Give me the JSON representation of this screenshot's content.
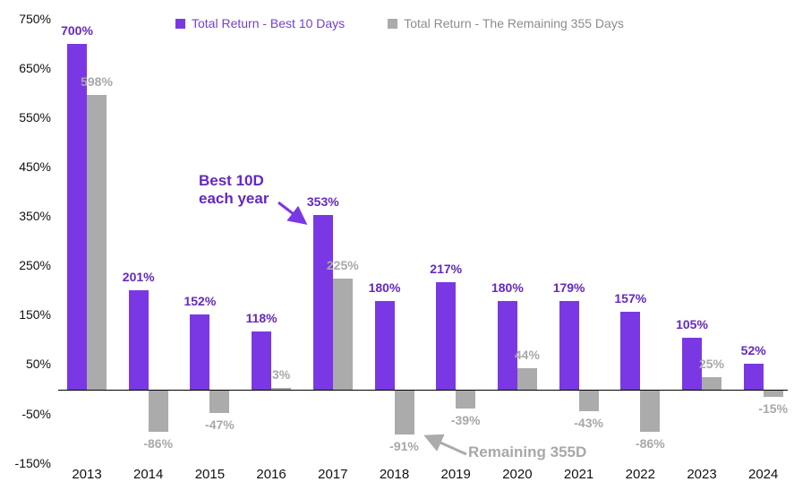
{
  "chart_data": {
    "type": "bar",
    "title": "",
    "categories": [
      "2013",
      "2014",
      "2015",
      "2016",
      "2017",
      "2018",
      "2019",
      "2020",
      "2021",
      "2022",
      "2023",
      "2024"
    ],
    "series": [
      {
        "name": "Total Return - Best 10 Days",
        "color": "#7a38e4",
        "label_color": "#6429c0",
        "legend_text_color": "#7340d2",
        "values": [
          700,
          201,
          152,
          118,
          353,
          180,
          217,
          180,
          179,
          157,
          105,
          52
        ],
        "labels": [
          "700%",
          "201%",
          "152%",
          "118%",
          "353%",
          "180%",
          "217%",
          "180%",
          "179%",
          "157%",
          "105%",
          "52%"
        ]
      },
      {
        "name": "Total Return - The Remaining 355 Days",
        "color": "#ababab",
        "label_color": "#a8a8a8",
        "legend_text_color": "#8c8c8c",
        "values": [
          598,
          -86,
          -47,
          3,
          225,
          -91,
          -39,
          44,
          -43,
          -86,
          25,
          -15
        ],
        "labels": [
          "598%",
          "-86%",
          "-47%",
          "3%",
          "225%",
          "-91%",
          "-39%",
          "44%",
          "-43%",
          "-86%",
          "25%",
          "-15%"
        ]
      }
    ],
    "y_axis": {
      "min": -150,
      "max": 750,
      "ticks": [
        750,
        650,
        550,
        450,
        350,
        250,
        150,
        50,
        -50,
        -150
      ],
      "tick_labels": [
        "750%",
        "650%",
        "550%",
        "450%",
        "350%",
        "250%",
        "150%",
        "50%",
        "-50%",
        "-150%"
      ]
    },
    "grid": false,
    "legend_position": "top",
    "annotations": [
      {
        "id": "best-10d",
        "line1": "Best 10D",
        "line2": "each year",
        "color": "#6429c0",
        "arrow_color": "#7a38e4",
        "points_to": "2017 Best 10 Days bar"
      },
      {
        "id": "remaining-355d",
        "line1": "Remaining 355D",
        "line2": "",
        "color": "#a8a8a8",
        "arrow_color": "#ababab",
        "points_to": "2018 Remaining 355 Days bar"
      }
    ]
  }
}
